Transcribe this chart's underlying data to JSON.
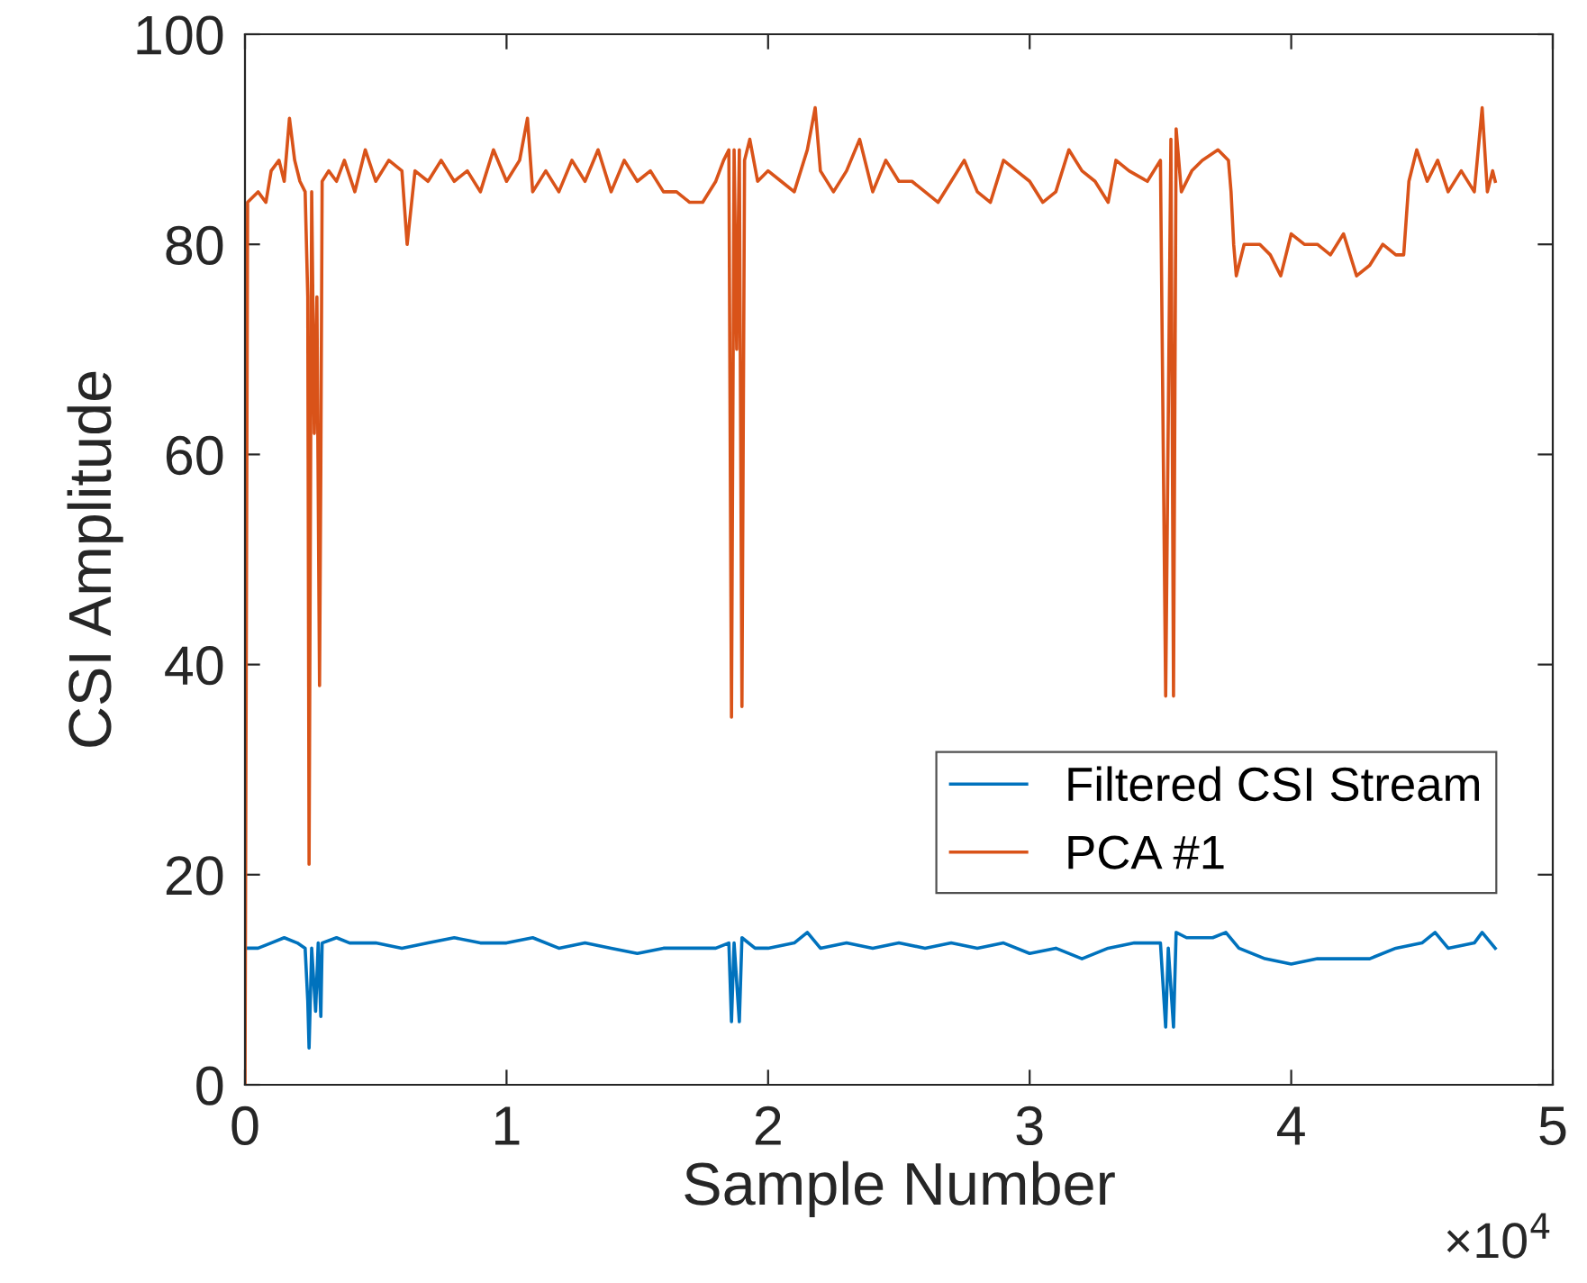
{
  "chart_data": {
    "type": "line",
    "xlabel": "Sample Number",
    "ylabel": "CSI Amplitude",
    "xlim": [
      0,
      5
    ],
    "ylim": [
      0,
      100
    ],
    "xticks": [
      0,
      1,
      2,
      3,
      4,
      5
    ],
    "yticks": [
      0,
      20,
      40,
      60,
      80,
      100
    ],
    "annotations": [
      "×10$^{4}$"
    ],
    "grid": false,
    "legend": "lower right",
    "marker": "none",
    "line_style": "solid",
    "series": [
      {
        "name": "Filtered CSI Stream",
        "color": "#0072bd",
        "x": [
          0,
          0.05,
          0.1,
          0.15,
          0.2,
          0.23,
          0.24,
          0.245,
          0.255,
          0.27,
          0.28,
          0.29,
          0.295,
          0.35,
          0.4,
          0.5,
          0.6,
          0.7,
          0.8,
          0.9,
          1.0,
          1.1,
          1.2,
          1.3,
          1.4,
          1.5,
          1.6,
          1.7,
          1.8,
          1.85,
          1.86,
          1.87,
          1.89,
          1.9,
          1.95,
          2.0,
          2.1,
          2.15,
          2.2,
          2.3,
          2.4,
          2.5,
          2.6,
          2.7,
          2.8,
          2.9,
          3.0,
          3.1,
          3.2,
          3.3,
          3.4,
          3.5,
          3.52,
          3.53,
          3.55,
          3.56,
          3.6,
          3.7,
          3.75,
          3.8,
          3.9,
          4.0,
          4.1,
          4.2,
          4.3,
          4.4,
          4.5,
          4.55,
          4.6,
          4.7,
          4.73,
          4.78
        ],
        "values": [
          13,
          13,
          13.5,
          14,
          13.5,
          13,
          8,
          3.5,
          13,
          7,
          13.5,
          6.5,
          13.5,
          14,
          13.5,
          13.5,
          13,
          13.5,
          14,
          13.5,
          13.5,
          14,
          13,
          13.5,
          13,
          12.5,
          13,
          13,
          13,
          13.5,
          6,
          13.5,
          6,
          14,
          13,
          13,
          13.5,
          14.5,
          13,
          13.5,
          13,
          13.5,
          13,
          13.5,
          13,
          13.5,
          12.5,
          13,
          12,
          13,
          13.5,
          13.5,
          5.5,
          13,
          5.5,
          14.5,
          14,
          14,
          14.5,
          13,
          12,
          11.5,
          12,
          12,
          12,
          13,
          13.5,
          14.5,
          13,
          13.5,
          14.5,
          13
        ]
      },
      {
        "name": "PCA #1",
        "color": "#d95319",
        "x": [
          0,
          0.01,
          0.05,
          0.08,
          0.1,
          0.13,
          0.15,
          0.17,
          0.19,
          0.21,
          0.23,
          0.24,
          0.245,
          0.255,
          0.265,
          0.275,
          0.285,
          0.29,
          0.295,
          0.32,
          0.35,
          0.38,
          0.42,
          0.46,
          0.5,
          0.55,
          0.6,
          0.62,
          0.65,
          0.7,
          0.75,
          0.8,
          0.85,
          0.9,
          0.95,
          1.0,
          1.05,
          1.08,
          1.1,
          1.15,
          1.2,
          1.25,
          1.3,
          1.35,
          1.4,
          1.45,
          1.5,
          1.55,
          1.6,
          1.65,
          1.7,
          1.75,
          1.8,
          1.83,
          1.85,
          1.86,
          1.87,
          1.88,
          1.89,
          1.9,
          1.91,
          1.93,
          1.96,
          2.0,
          2.05,
          2.1,
          2.15,
          2.18,
          2.2,
          2.25,
          2.3,
          2.35,
          2.4,
          2.45,
          2.5,
          2.55,
          2.6,
          2.65,
          2.7,
          2.75,
          2.8,
          2.85,
          2.9,
          2.95,
          3.0,
          3.05,
          3.1,
          3.15,
          3.2,
          3.25,
          3.3,
          3.33,
          3.38,
          3.45,
          3.5,
          3.52,
          3.54,
          3.55,
          3.56,
          3.58,
          3.62,
          3.66,
          3.72,
          3.76,
          3.77,
          3.78,
          3.79,
          3.82,
          3.88,
          3.92,
          3.96,
          4.0,
          4.05,
          4.1,
          4.15,
          4.2,
          4.25,
          4.3,
          4.35,
          4.4,
          4.43,
          4.45,
          4.48,
          4.52,
          4.56,
          4.6,
          4.65,
          4.7,
          4.73,
          4.75,
          4.77,
          4.78
        ],
        "values": [
          0,
          84,
          85,
          84,
          87,
          88,
          86,
          92,
          88,
          86,
          85,
          75,
          21,
          85,
          62,
          75,
          38,
          59,
          86,
          87,
          86,
          88,
          85,
          89,
          86,
          88,
          87,
          80,
          87,
          86,
          88,
          86,
          87,
          85,
          89,
          86,
          88,
          92,
          85,
          87,
          85,
          88,
          86,
          89,
          85,
          88,
          86,
          87,
          85,
          85,
          84,
          84,
          86,
          88,
          89,
          35,
          89,
          70,
          89,
          36,
          88,
          90,
          86,
          87,
          86,
          85,
          89,
          93,
          87,
          85,
          87,
          90,
          85,
          88,
          86,
          86,
          85,
          84,
          86,
          88,
          85,
          84,
          88,
          87,
          86,
          84,
          85,
          89,
          87,
          86,
          84,
          88,
          87,
          86,
          88,
          37,
          90,
          37,
          91,
          85,
          87,
          88,
          89,
          88,
          85,
          80,
          77,
          80,
          80,
          79,
          77,
          81,
          80,
          80,
          79,
          81,
          77,
          78,
          80,
          79,
          79,
          86,
          89,
          86,
          88,
          85,
          87,
          85,
          93,
          85,
          87,
          86
        ]
      }
    ]
  }
}
